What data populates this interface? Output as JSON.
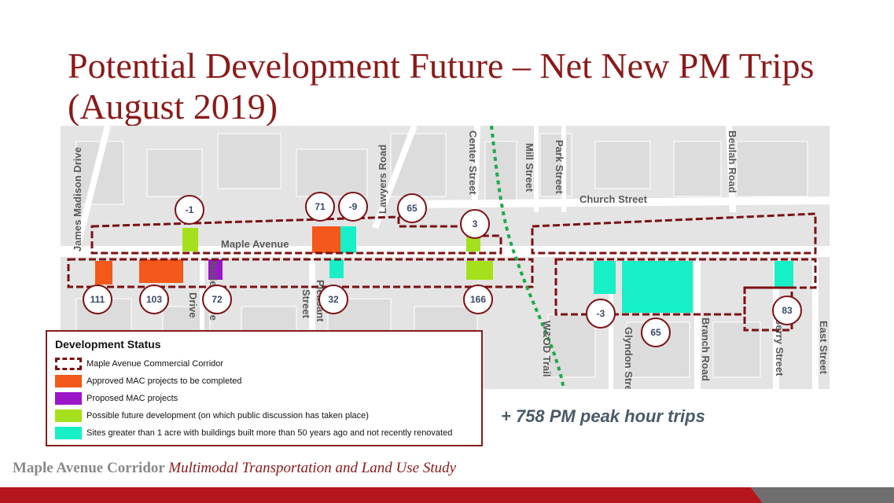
{
  "title": "Potential Development Future – Net New PM Trips (August 2019)",
  "streets": {
    "james_madison": "James Madison Drive",
    "lawyers": "Lawyers Road",
    "center": "Center Street",
    "mill": "Mill Street",
    "park": "Park Street",
    "beulah": "Beulah Road",
    "church": "Church Street",
    "maple": "Maple Avenue",
    "drive": "Drive",
    "nutley": "Nutley Drive",
    "street_a": "Street",
    "pleasant": "Pleasant",
    "wod": "W&OD Trail",
    "glyndon": "Glyndon Street",
    "branch": "Branch Road",
    "berry": "Berry Street",
    "east": "East Street"
  },
  "trip_counts": [
    "-1",
    "71",
    "-9",
    "65",
    "3",
    "111",
    "103",
    "72",
    "32",
    "166",
    "-3",
    "65",
    "83"
  ],
  "legend": {
    "title": "Development Status",
    "items": [
      {
        "label": "Maple Avenue Commercial Corridor",
        "kind": "corridor"
      },
      {
        "label": "Approved MAC projects to be completed",
        "color": "#f4581a"
      },
      {
        "label": "Proposed MAC projects",
        "color": "#9b16c9"
      },
      {
        "label": "Possible future development (on which public discussion has taken place)",
        "color": "#a5e01c"
      },
      {
        "label": "Sites greater than 1 acre with buildings built more than 50 years ago and not recently renovated",
        "color": "#17f0c7"
      }
    ]
  },
  "summary": "+ 758 PM peak hour trips",
  "footer": {
    "main": "Maple Avenue Corridor",
    "sub": "Multimodal Transportation and Land Use Study"
  },
  "colors": {
    "corridor": "#7b1113",
    "title": "#8b1a1a",
    "trail": "#1fa94a",
    "bar": "#b5161c"
  }
}
